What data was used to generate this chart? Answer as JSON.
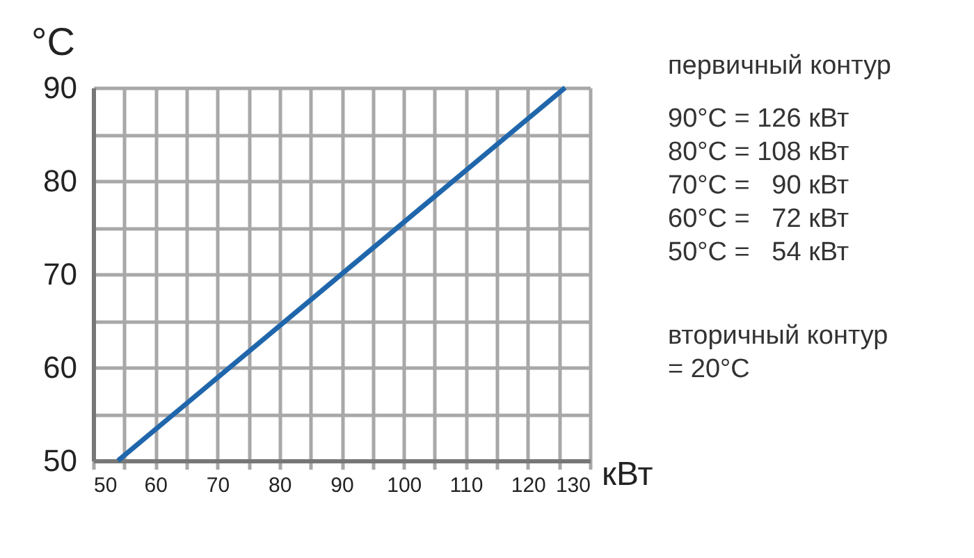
{
  "chart_data": {
    "type": "line",
    "xlabel": "кВт",
    "ylabel": "°C",
    "x": [
      54,
      72,
      90,
      108,
      126
    ],
    "series": [
      {
        "color": "#1f66ab",
        "values": [
          50,
          60,
          70,
          80,
          90
        ]
      }
    ],
    "xlim": [
      50,
      130
    ],
    "ylim": [
      50,
      90
    ],
    "xticks": [
      50,
      {
        "value": 55,
        "label": null
      },
      60,
      {
        "value": 65,
        "label": null
      },
      70,
      {
        "value": 75,
        "label": null
      },
      80,
      {
        "value": 85,
        "label": null
      },
      90,
      {
        "value": 95,
        "label": null
      },
      100,
      {
        "value": 105,
        "label": null
      },
      110,
      {
        "value": 115,
        "label": null
      },
      120,
      {
        "value": 125,
        "label": null
      },
      130
    ],
    "yticks": [
      50,
      {
        "value": 55,
        "label": null
      },
      60,
      {
        "value": 65,
        "label": null
      },
      70,
      {
        "value": 75,
        "label": null
      },
      80,
      {
        "value": 85,
        "label": null
      },
      90
    ],
    "grid": true,
    "marker": "none",
    "line_style": "solid",
    "annotations": [
      "первичный контур",
      "90°C = 126 кВт",
      "80°C = 108 кВт",
      "70°C =   90 кВт",
      "60°C =   72 кВт",
      "50°C =   54 кВт",
      "вторичный контур",
      "= 20°C"
    ]
  }
}
